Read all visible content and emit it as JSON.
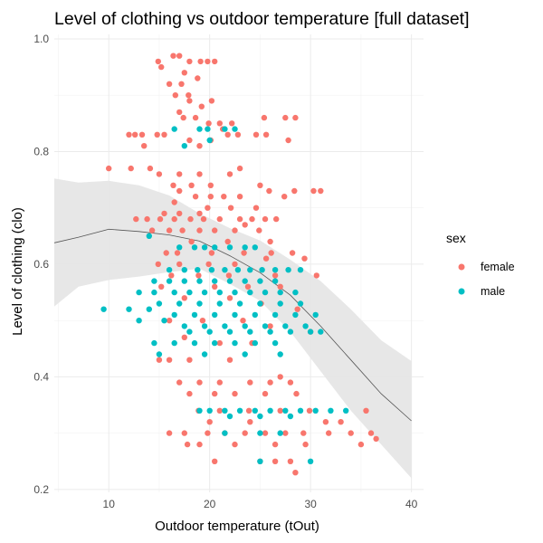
{
  "chart_data": {
    "type": "scatter",
    "title": "Level of clothing vs outdoor temperature [full dataset]",
    "xlabel": "Outdoor temperature (tOut)",
    "ylabel": "Level of clothing (clo)",
    "xlim": [
      4.6,
      41.2
    ],
    "ylim": [
      0.195,
      1.008
    ],
    "xticks": [
      10,
      20,
      30,
      40
    ],
    "yticks": [
      0.2,
      0.4,
      0.6,
      0.8,
      1.0
    ],
    "ytick_labels": [
      "0.2",
      "0.4",
      "0.6",
      "0.8",
      "1.0"
    ],
    "grid": true,
    "legend": {
      "title": "sex",
      "position": "right",
      "entries": [
        {
          "label": "female",
          "color": "#F8766D"
        },
        {
          "label": "male",
          "color": "#00BFC4"
        }
      ]
    },
    "series": [
      {
        "name": "female",
        "color": "#F8766D",
        "points": [
          [
            14.9,
            0.96
          ],
          [
            16.4,
            0.97
          ],
          [
            17.0,
            0.97
          ],
          [
            18.0,
            0.96
          ],
          [
            19.1,
            0.96
          ],
          [
            19.8,
            0.96
          ],
          [
            20.5,
            0.96
          ],
          [
            15.2,
            0.95
          ],
          [
            17.5,
            0.94
          ],
          [
            18.8,
            0.93
          ],
          [
            16.0,
            0.92
          ],
          [
            17.2,
            0.92
          ],
          [
            17.9,
            0.9
          ],
          [
            16.6,
            0.9
          ],
          [
            18.0,
            0.89
          ],
          [
            20.2,
            0.89
          ],
          [
            19.2,
            0.88
          ],
          [
            17.0,
            0.87
          ],
          [
            17.4,
            0.86
          ],
          [
            18.6,
            0.86
          ],
          [
            19.9,
            0.85
          ],
          [
            21.0,
            0.85
          ],
          [
            22.2,
            0.85
          ],
          [
            25.4,
            0.86
          ],
          [
            27.5,
            0.86
          ],
          [
            28.5,
            0.86
          ],
          [
            21.3,
            0.84
          ],
          [
            21.8,
            0.83
          ],
          [
            12.0,
            0.83
          ],
          [
            12.6,
            0.83
          ],
          [
            13.3,
            0.83
          ],
          [
            14.8,
            0.83
          ],
          [
            15.5,
            0.83
          ],
          [
            18.0,
            0.82
          ],
          [
            20.1,
            0.82
          ],
          [
            22.8,
            0.83
          ],
          [
            24.6,
            0.83
          ],
          [
            25.6,
            0.83
          ],
          [
            27.8,
            0.82
          ],
          [
            19.0,
            0.81
          ],
          [
            13.5,
            0.81
          ],
          [
            10.0,
            0.77
          ],
          [
            12.2,
            0.77
          ],
          [
            14.1,
            0.77
          ],
          [
            15.0,
            0.76
          ],
          [
            17.0,
            0.76
          ],
          [
            19.0,
            0.76
          ],
          [
            22.0,
            0.76
          ],
          [
            23.0,
            0.77
          ],
          [
            16.4,
            0.74
          ],
          [
            18.2,
            0.74
          ],
          [
            20.1,
            0.74
          ],
          [
            25.0,
            0.74
          ],
          [
            17.0,
            0.73
          ],
          [
            18.6,
            0.72
          ],
          [
            20.1,
            0.72
          ],
          [
            21.4,
            0.72
          ],
          [
            23.0,
            0.72
          ],
          [
            25.9,
            0.73
          ],
          [
            27.4,
            0.72
          ],
          [
            28.4,
            0.73
          ],
          [
            30.3,
            0.73
          ],
          [
            31.0,
            0.73
          ],
          [
            16.5,
            0.71
          ],
          [
            19.8,
            0.7
          ],
          [
            22.1,
            0.7
          ],
          [
            24.6,
            0.7
          ],
          [
            15.5,
            0.69
          ],
          [
            17.0,
            0.69
          ],
          [
            19.0,
            0.69
          ],
          [
            23.0,
            0.68
          ],
          [
            12.7,
            0.68
          ],
          [
            13.8,
            0.68
          ],
          [
            15.1,
            0.68
          ],
          [
            16.5,
            0.68
          ],
          [
            18.1,
            0.68
          ],
          [
            19.4,
            0.68
          ],
          [
            21.0,
            0.68
          ],
          [
            24.2,
            0.68
          ],
          [
            25.5,
            0.68
          ],
          [
            26.6,
            0.68
          ],
          [
            14.3,
            0.66
          ],
          [
            16.0,
            0.66
          ],
          [
            17.3,
            0.66
          ],
          [
            19.0,
            0.66
          ],
          [
            20.5,
            0.66
          ],
          [
            22.5,
            0.66
          ],
          [
            23.5,
            0.67
          ],
          [
            24.9,
            0.66
          ],
          [
            18.2,
            0.64
          ],
          [
            21.8,
            0.64
          ],
          [
            26.0,
            0.64
          ],
          [
            15.7,
            0.62
          ],
          [
            16.8,
            0.62
          ],
          [
            20.2,
            0.62
          ],
          [
            23.4,
            0.62
          ],
          [
            26.1,
            0.62
          ],
          [
            28.2,
            0.62
          ],
          [
            14.9,
            0.6
          ],
          [
            17.0,
            0.6
          ],
          [
            19.9,
            0.6
          ],
          [
            22.5,
            0.6
          ],
          [
            25.6,
            0.61
          ],
          [
            29.4,
            0.61
          ],
          [
            16.2,
            0.58
          ],
          [
            18.9,
            0.58
          ],
          [
            21.9,
            0.58
          ],
          [
            26.5,
            0.58
          ],
          [
            30.6,
            0.58
          ],
          [
            15.2,
            0.56
          ],
          [
            20.5,
            0.56
          ],
          [
            23.8,
            0.56
          ],
          [
            27.0,
            0.56
          ],
          [
            17.5,
            0.54
          ],
          [
            22.0,
            0.54
          ],
          [
            25.1,
            0.53
          ],
          [
            28.7,
            0.52
          ],
          [
            16.0,
            0.5
          ],
          [
            19.3,
            0.5
          ],
          [
            23.3,
            0.5
          ],
          [
            26.0,
            0.49
          ],
          [
            30.0,
            0.48
          ],
          [
            17.5,
            0.47
          ],
          [
            21.0,
            0.46
          ],
          [
            24.2,
            0.46
          ],
          [
            15.0,
            0.43
          ],
          [
            16.0,
            0.43
          ],
          [
            18.0,
            0.43
          ],
          [
            22.0,
            0.43
          ],
          [
            17.0,
            0.39
          ],
          [
            19.0,
            0.39
          ],
          [
            21.0,
            0.39
          ],
          [
            24.0,
            0.39
          ],
          [
            26.0,
            0.39
          ],
          [
            27.0,
            0.4
          ],
          [
            28.0,
            0.39
          ],
          [
            18.0,
            0.37
          ],
          [
            20.5,
            0.37
          ],
          [
            22.5,
            0.37
          ],
          [
            25.5,
            0.37
          ],
          [
            28.6,
            0.37
          ],
          [
            18.9,
            0.34
          ],
          [
            21.0,
            0.34
          ],
          [
            23.9,
            0.34
          ],
          [
            27.0,
            0.34
          ],
          [
            29.9,
            0.34
          ],
          [
            35.5,
            0.34
          ],
          [
            20.0,
            0.32
          ],
          [
            24.0,
            0.32
          ],
          [
            31.5,
            0.32
          ],
          [
            33.0,
            0.32
          ],
          [
            16.0,
            0.3
          ],
          [
            17.5,
            0.3
          ],
          [
            19.8,
            0.3
          ],
          [
            21.5,
            0.3
          ],
          [
            23.5,
            0.3
          ],
          [
            25.5,
            0.3
          ],
          [
            27.5,
            0.3
          ],
          [
            29.3,
            0.3
          ],
          [
            31.8,
            0.3
          ],
          [
            34.0,
            0.3
          ],
          [
            36.0,
            0.3
          ],
          [
            17.8,
            0.28
          ],
          [
            19.0,
            0.28
          ],
          [
            22.5,
            0.28
          ],
          [
            26.5,
            0.28
          ],
          [
            29.5,
            0.28
          ],
          [
            35.0,
            0.28
          ],
          [
            36.5,
            0.29
          ],
          [
            20.5,
            0.25
          ],
          [
            25.0,
            0.25
          ],
          [
            26.5,
            0.25
          ],
          [
            28.0,
            0.25
          ],
          [
            28.5,
            0.23
          ]
        ]
      },
      {
        "name": "male",
        "color": "#00BFC4",
        "points": [
          [
            19.0,
            0.84
          ],
          [
            19.8,
            0.84
          ],
          [
            21.5,
            0.84
          ],
          [
            22.5,
            0.84
          ],
          [
            16.5,
            0.84
          ],
          [
            20.0,
            0.82
          ],
          [
            17.5,
            0.81
          ],
          [
            14.0,
            0.65
          ],
          [
            17.0,
            0.63
          ],
          [
            18.5,
            0.63
          ],
          [
            19.5,
            0.63
          ],
          [
            20.5,
            0.63
          ],
          [
            22.0,
            0.63
          ],
          [
            23.5,
            0.63
          ],
          [
            24.5,
            0.63
          ],
          [
            16.0,
            0.59
          ],
          [
            17.5,
            0.59
          ],
          [
            18.8,
            0.59
          ],
          [
            20.2,
            0.59
          ],
          [
            21.5,
            0.59
          ],
          [
            22.8,
            0.59
          ],
          [
            24.0,
            0.59
          ],
          [
            25.2,
            0.59
          ],
          [
            26.5,
            0.59
          ],
          [
            27.8,
            0.59
          ],
          [
            29.0,
            0.59
          ],
          [
            14.5,
            0.57
          ],
          [
            16.0,
            0.57
          ],
          [
            17.5,
            0.57
          ],
          [
            19.0,
            0.57
          ],
          [
            20.5,
            0.57
          ],
          [
            22.0,
            0.57
          ],
          [
            23.5,
            0.57
          ],
          [
            25.0,
            0.57
          ],
          [
            26.5,
            0.57
          ],
          [
            13.0,
            0.55
          ],
          [
            14.5,
            0.55
          ],
          [
            16.5,
            0.55
          ],
          [
            18.0,
            0.55
          ],
          [
            19.5,
            0.55
          ],
          [
            21.0,
            0.55
          ],
          [
            22.5,
            0.55
          ],
          [
            24.0,
            0.55
          ],
          [
            25.5,
            0.55
          ],
          [
            27.0,
            0.55
          ],
          [
            28.5,
            0.55
          ],
          [
            15.0,
            0.53
          ],
          [
            17.0,
            0.53
          ],
          [
            19.0,
            0.53
          ],
          [
            21.0,
            0.53
          ],
          [
            23.0,
            0.53
          ],
          [
            25.0,
            0.53
          ],
          [
            27.0,
            0.53
          ],
          [
            29.0,
            0.53
          ],
          [
            9.5,
            0.52
          ],
          [
            12.0,
            0.52
          ],
          [
            14.0,
            0.52
          ],
          [
            16.5,
            0.51
          ],
          [
            18.5,
            0.51
          ],
          [
            20.5,
            0.51
          ],
          [
            22.5,
            0.51
          ],
          [
            24.5,
            0.51
          ],
          [
            26.5,
            0.51
          ],
          [
            28.5,
            0.51
          ],
          [
            30.5,
            0.51
          ],
          [
            13.0,
            0.5
          ],
          [
            15.5,
            0.5
          ],
          [
            17.5,
            0.49
          ],
          [
            19.5,
            0.49
          ],
          [
            21.5,
            0.49
          ],
          [
            23.5,
            0.49
          ],
          [
            25.5,
            0.49
          ],
          [
            27.5,
            0.49
          ],
          [
            29.5,
            0.49
          ],
          [
            31.0,
            0.48
          ],
          [
            18.0,
            0.48
          ],
          [
            20.0,
            0.48
          ],
          [
            22.0,
            0.48
          ],
          [
            24.0,
            0.48
          ],
          [
            26.0,
            0.48
          ],
          [
            28.0,
            0.48
          ],
          [
            30.0,
            0.48
          ],
          [
            14.5,
            0.46
          ],
          [
            16.5,
            0.46
          ],
          [
            18.5,
            0.46
          ],
          [
            20.5,
            0.46
          ],
          [
            22.5,
            0.46
          ],
          [
            24.5,
            0.46
          ],
          [
            26.5,
            0.46
          ],
          [
            15.0,
            0.44
          ],
          [
            19.5,
            0.44
          ],
          [
            23.5,
            0.44
          ],
          [
            27.0,
            0.44
          ],
          [
            20.0,
            0.34
          ],
          [
            21.5,
            0.34
          ],
          [
            23.0,
            0.34
          ],
          [
            24.5,
            0.34
          ],
          [
            26.0,
            0.34
          ],
          [
            27.5,
            0.34
          ],
          [
            29.0,
            0.34
          ],
          [
            30.5,
            0.34
          ],
          [
            32.0,
            0.34
          ],
          [
            33.5,
            0.34
          ],
          [
            19.0,
            0.34
          ],
          [
            22.0,
            0.33
          ],
          [
            25.0,
            0.33
          ],
          [
            28.0,
            0.33
          ],
          [
            21.5,
            0.3
          ],
          [
            25.0,
            0.3
          ],
          [
            27.0,
            0.3
          ],
          [
            25.0,
            0.25
          ],
          [
            30.0,
            0.25
          ]
        ]
      }
    ],
    "smooth_line": {
      "x": [
        4.6,
        7,
        10,
        13,
        16,
        19,
        22,
        25,
        28,
        31,
        34,
        37,
        40
      ],
      "y": [
        0.638,
        0.648,
        0.662,
        0.658,
        0.652,
        0.641,
        0.615,
        0.585,
        0.545,
        0.49,
        0.43,
        0.37,
        0.322
      ],
      "lower": [
        0.525,
        0.56,
        0.572,
        0.578,
        0.586,
        0.592,
        0.565,
        0.535,
        0.48,
        0.41,
        0.34,
        0.28,
        0.22
      ],
      "upper": [
        0.752,
        0.745,
        0.748,
        0.74,
        0.722,
        0.69,
        0.664,
        0.642,
        0.608,
        0.57,
        0.52,
        0.465,
        0.428
      ]
    }
  }
}
